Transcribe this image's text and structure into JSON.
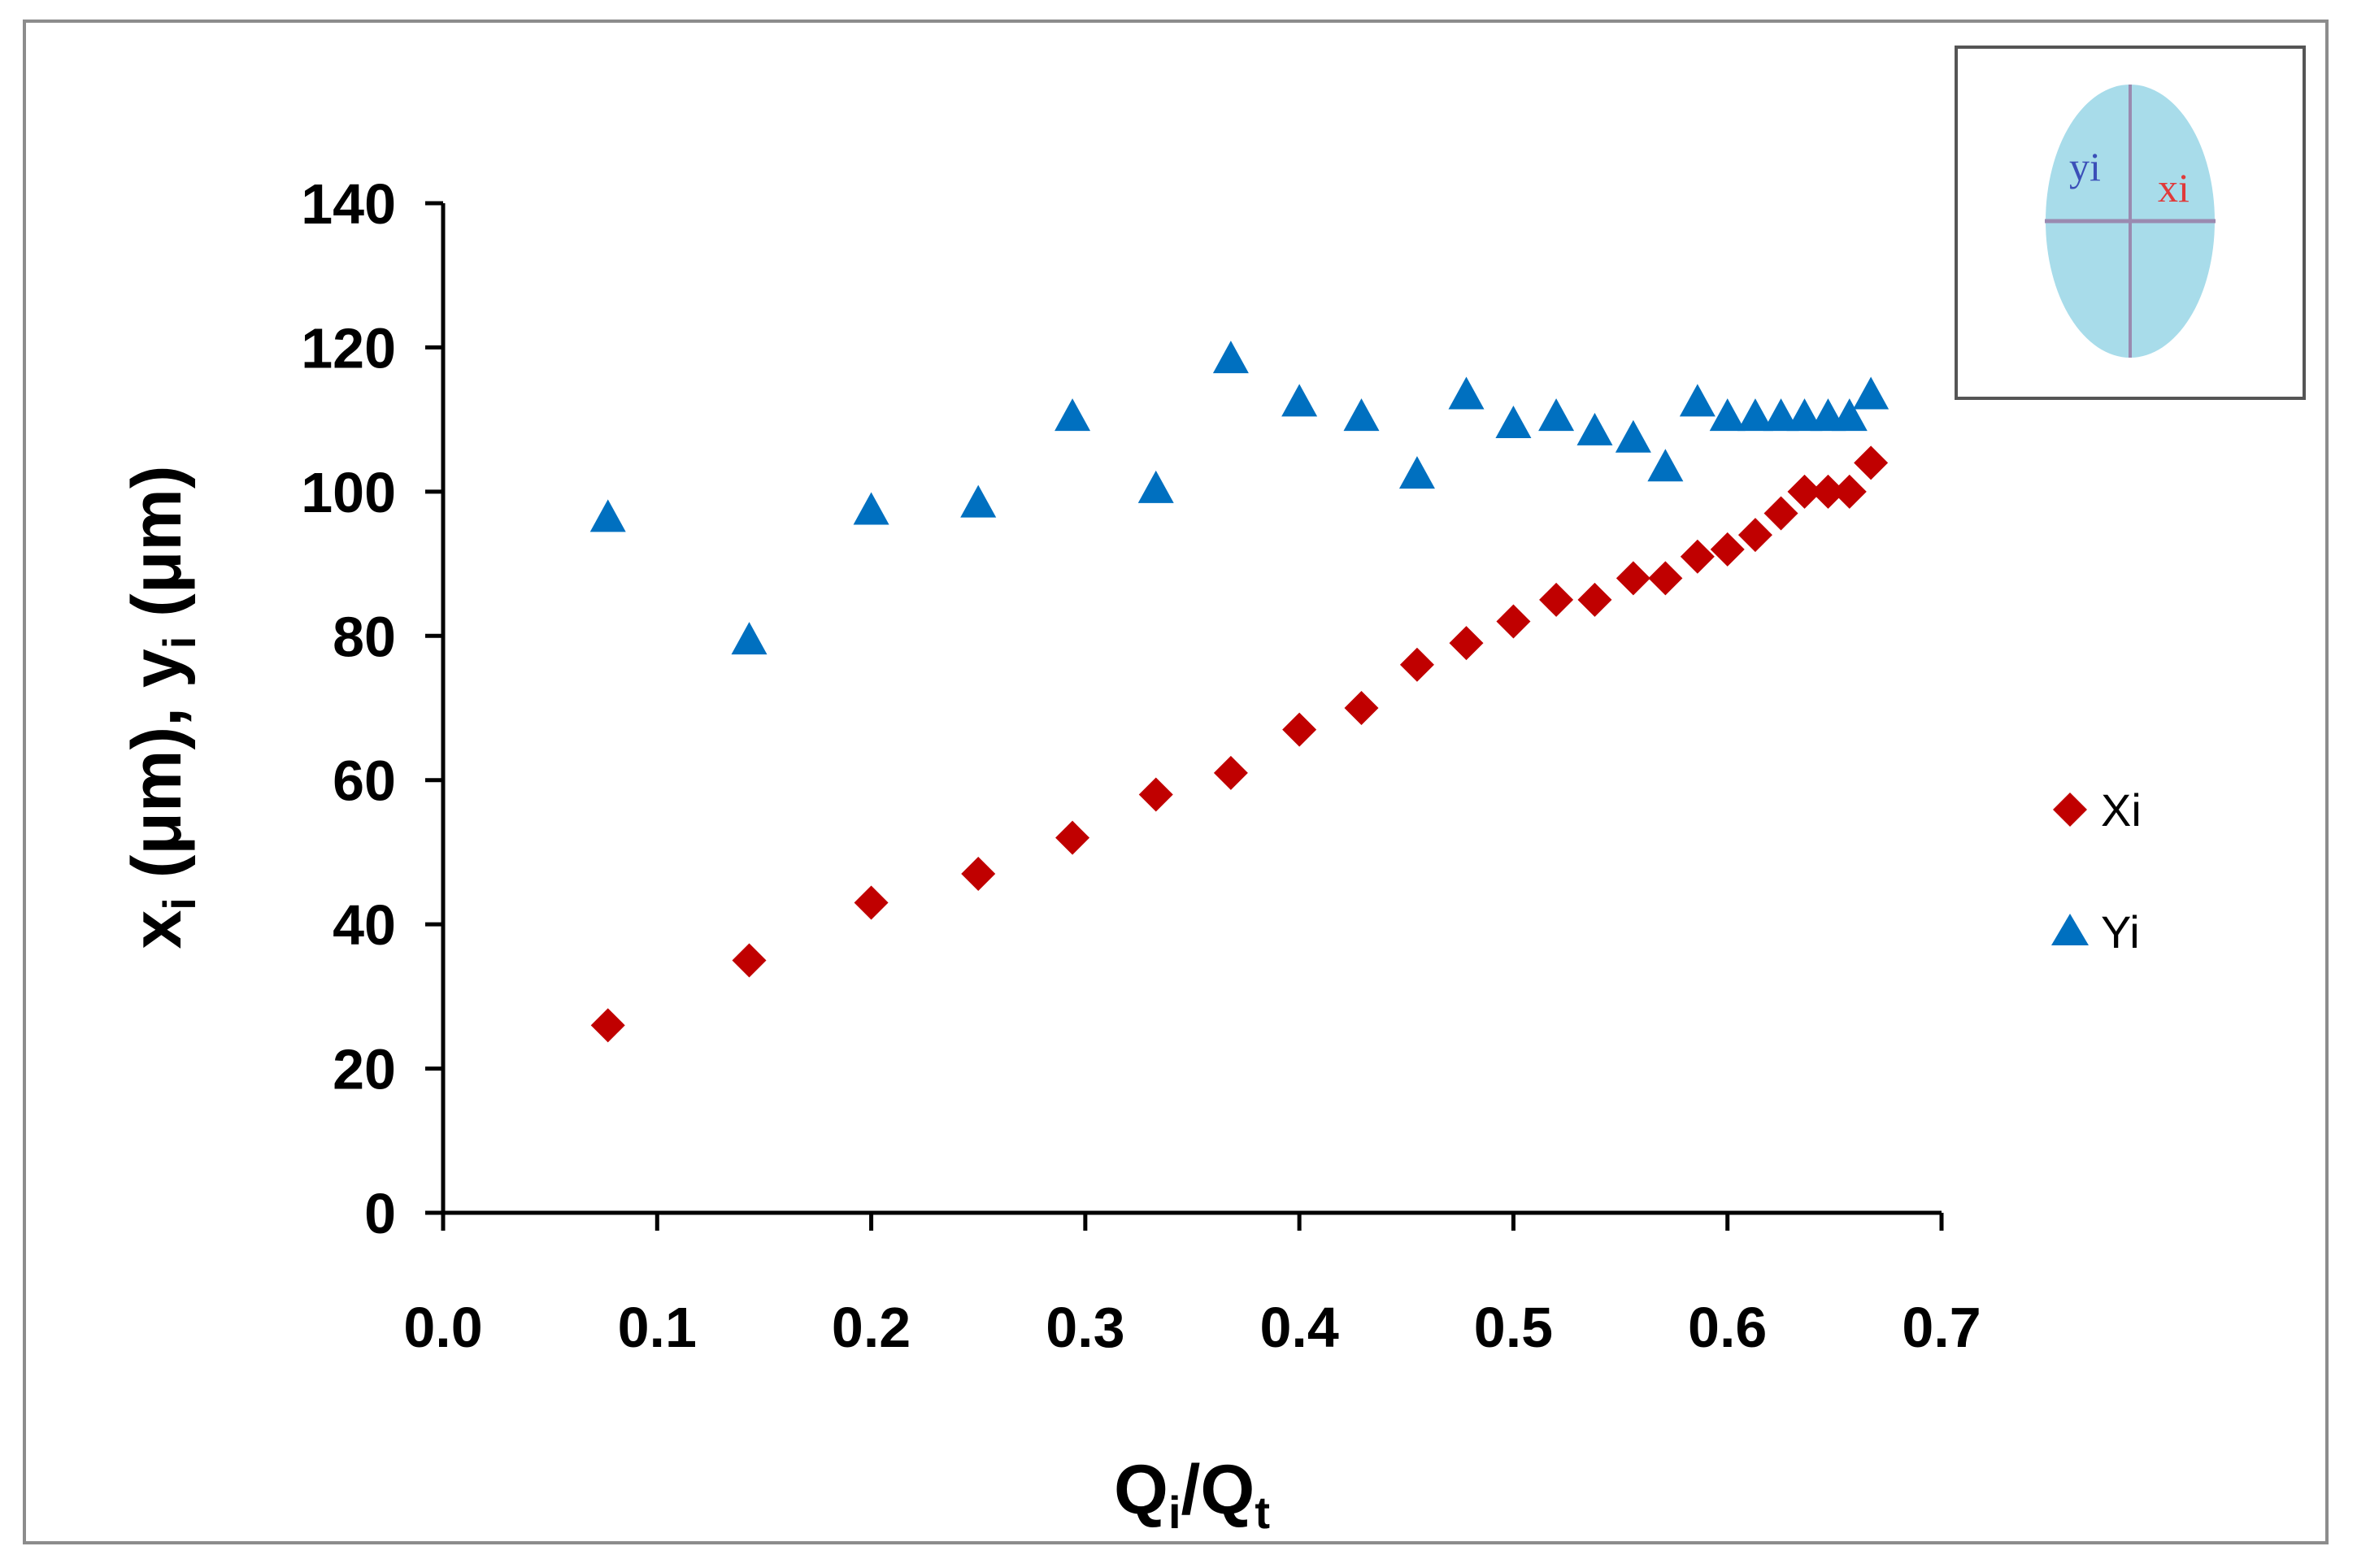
{
  "chart_data": {
    "type": "scatter",
    "xlabel": {
      "main": "Q",
      "sub": "i",
      "sep": "/",
      "main2": "Q",
      "sub2": "t"
    },
    "ylabel": {
      "p1": "x",
      "s1": "i",
      "p2": " (μm), y",
      "s2": "i",
      "p3": " (μm)"
    },
    "xlim": [
      0,
      0.7
    ],
    "ylim": [
      0,
      140
    ],
    "x_ticks": [
      "0.0",
      "0.1",
      "0.2",
      "0.3",
      "0.4",
      "0.5",
      "0.6",
      "0.7"
    ],
    "y_ticks": [
      "0",
      "20",
      "40",
      "60",
      "80",
      "100",
      "120",
      "140"
    ],
    "grid": false,
    "legend_position": "right",
    "series": [
      {
        "name": "Xi",
        "marker": "diamond",
        "color": "#c00000",
        "x": [
          0.077,
          0.143,
          0.2,
          0.25,
          0.294,
          0.333,
          0.368,
          0.4,
          0.429,
          0.455,
          0.478,
          0.5,
          0.52,
          0.538,
          0.556,
          0.571,
          0.586,
          0.6,
          0.613,
          0.625,
          0.636,
          0.647,
          0.657,
          0.667
        ],
        "y": [
          26,
          35,
          43,
          47,
          52,
          58,
          61,
          67,
          70,
          76,
          79,
          82,
          85,
          85,
          88,
          88,
          91,
          92,
          94,
          97,
          100,
          100,
          100,
          104
        ]
      },
      {
        "name": "Yi",
        "marker": "triangle",
        "color": "#0070c0",
        "x": [
          0.077,
          0.143,
          0.2,
          0.25,
          0.294,
          0.333,
          0.368,
          0.4,
          0.429,
          0.455,
          0.478,
          0.5,
          0.52,
          0.538,
          0.556,
          0.571,
          0.586,
          0.6,
          0.613,
          0.625,
          0.636,
          0.647,
          0.657,
          0.667
        ],
        "y": [
          96,
          79,
          97,
          98,
          110,
          100,
          118,
          112,
          110,
          102,
          113,
          109,
          110,
          108,
          107,
          103,
          112,
          110,
          110,
          110,
          110,
          110,
          110,
          113
        ]
      }
    ],
    "inset": {
      "label_y": "yi",
      "label_x": "xi",
      "fill_color": "#a8dcea",
      "y_color": "#3b4fb8",
      "x_color": "#e03a3a",
      "line_color": "#9a8ab0"
    }
  }
}
